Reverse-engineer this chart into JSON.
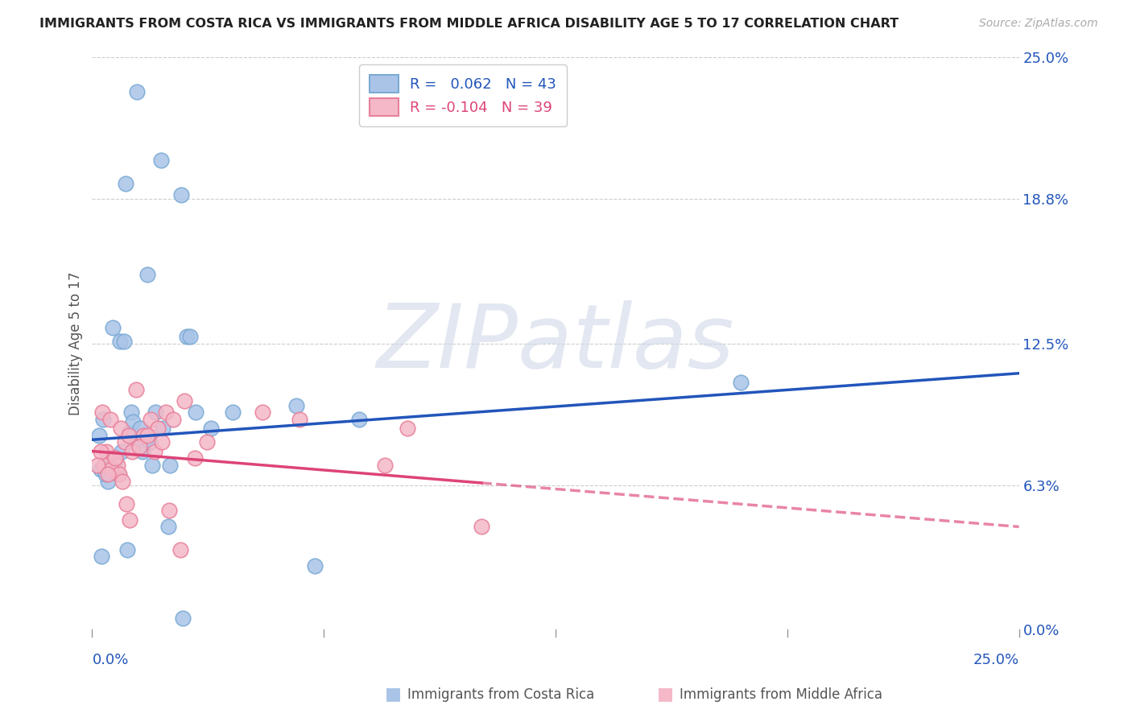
{
  "title": "IMMIGRANTS FROM COSTA RICA VS IMMIGRANTS FROM MIDDLE AFRICA DISABILITY AGE 5 TO 17 CORRELATION CHART",
  "source": "Source: ZipAtlas.com",
  "ylabel": "Disability Age 5 to 17",
  "yticks": [
    0.0,
    6.3,
    12.5,
    18.8,
    25.0
  ],
  "ytick_labels": [
    "0.0%",
    "6.3%",
    "12.5%",
    "18.8%",
    "25.0%"
  ],
  "xlim": [
    0.0,
    25.0
  ],
  "ylim": [
    0.0,
    25.0
  ],
  "series1_label": "Immigrants from Costa Rica",
  "series1_R": "0.062",
  "series1_N": "43",
  "series1_color": "#aac4e8",
  "series1_edge_color": "#7aaad4",
  "series2_label": "Immigrants from Middle Africa",
  "series2_R": "-0.104",
  "series2_N": "39",
  "series2_color": "#f4b8c8",
  "series2_edge_color": "#e8809a",
  "line1_color": "#2255bb",
  "line2_color": "#dd4477",
  "watermark_color": "#d0d8e8",
  "background_color": "#ffffff",
  "grid_color": "#cccccc",
  "costa_rica_x": [
    1.2,
    1.85,
    0.9,
    2.4,
    1.5,
    2.55,
    2.65,
    0.55,
    0.75,
    0.85,
    1.05,
    1.15,
    0.65,
    1.35,
    0.18,
    0.3,
    0.5,
    1.7,
    1.9,
    2.8,
    3.2,
    5.5,
    7.2,
    17.5,
    3.8,
    2.05,
    0.95,
    2.45,
    0.42,
    1.62,
    0.22,
    0.35,
    0.45,
    0.6,
    0.7,
    0.8,
    1.0,
    1.1,
    1.3,
    1.55,
    2.1,
    0.25,
    6.0
  ],
  "costa_rica_y": [
    23.5,
    20.5,
    19.5,
    19.0,
    15.5,
    12.8,
    12.8,
    13.2,
    12.6,
    12.6,
    9.5,
    8.2,
    7.5,
    7.8,
    8.5,
    9.2,
    7.2,
    9.5,
    8.8,
    9.5,
    8.8,
    9.8,
    9.2,
    10.8,
    9.5,
    4.5,
    3.5,
    0.5,
    6.5,
    7.2,
    7.0,
    6.8,
    7.5,
    7.2,
    6.8,
    7.8,
    8.6,
    9.1,
    8.8,
    8.2,
    7.2,
    3.2,
    2.8
  ],
  "middle_africa_x": [
    0.28,
    0.48,
    0.78,
    0.88,
    0.98,
    0.38,
    0.58,
    0.68,
    1.08,
    1.18,
    1.38,
    1.58,
    1.78,
    1.98,
    2.18,
    0.32,
    0.52,
    0.62,
    0.72,
    1.28,
    1.48,
    1.68,
    1.88,
    2.48,
    0.22,
    2.78,
    3.1,
    4.6,
    5.6,
    0.82,
    0.92,
    1.02,
    2.08,
    2.38,
    0.15,
    10.5,
    8.5,
    7.9,
    0.42
  ],
  "middle_africa_y": [
    9.5,
    9.2,
    8.8,
    8.2,
    8.5,
    7.8,
    7.5,
    7.2,
    7.8,
    10.5,
    8.5,
    9.2,
    8.8,
    9.5,
    9.2,
    7.2,
    7.0,
    7.5,
    6.8,
    8.0,
    8.5,
    7.8,
    8.2,
    10.0,
    7.8,
    7.5,
    8.2,
    9.5,
    9.2,
    6.5,
    5.5,
    4.8,
    5.2,
    3.5,
    7.2,
    4.5,
    8.8,
    7.2,
    6.8
  ],
  "cr_line_x0": 0.0,
  "cr_line_y0": 8.3,
  "cr_line_x1": 25.0,
  "cr_line_y1": 11.2,
  "ma_line_x0": 0.0,
  "ma_line_y0": 7.8,
  "ma_line_x1": 25.0,
  "ma_line_y1": 4.5,
  "ma_solid_end_x": 10.5
}
